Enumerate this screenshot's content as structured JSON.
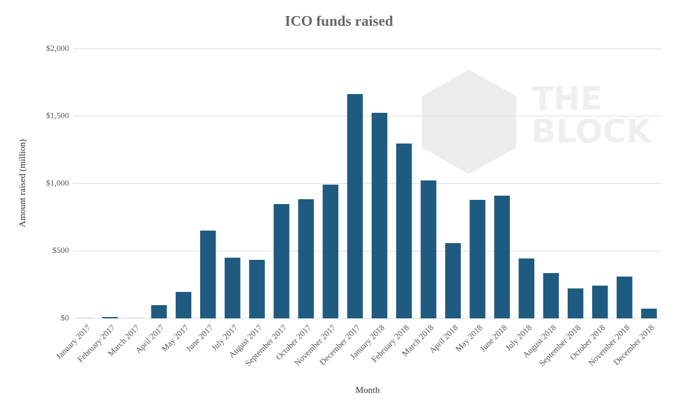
{
  "chart_data": {
    "type": "bar",
    "title": "ICO funds raised",
    "x_label": "Month",
    "y_label": "Amount raised (million)",
    "watermark": [
      "THE",
      "BLOCK"
    ],
    "categories": [
      "January 2017",
      "February 2017",
      "March 2017",
      "April 2017",
      "May 2017",
      "June 2017",
      "July 2017",
      "August 2017",
      "September 2017",
      "October 2017",
      "November 2017",
      "December 2017",
      "January 2018",
      "February 2018",
      "March 2018",
      "April 2018",
      "May 2018",
      "June 2018",
      "July 2018",
      "August 2018",
      "September 2018",
      "October 2018",
      "November 2018",
      "December 2018"
    ],
    "values": [
      1,
      10,
      1,
      98,
      196,
      651,
      450,
      434,
      848,
      884,
      992,
      1664,
      1525,
      1297,
      1023,
      558,
      879,
      910,
      444,
      336,
      222,
      243,
      310,
      72
    ],
    "color": "#1f5b80",
    "ylim": [
      0,
      2000
    ],
    "yticks": [
      {
        "value": 0,
        "label": "$0"
      },
      {
        "value": 500,
        "label": "$500"
      },
      {
        "value": 1000,
        "label": "$1,000"
      },
      {
        "value": 1500,
        "label": "$1,500"
      },
      {
        "value": 2000,
        "label": "$2,000"
      }
    ],
    "grid": true
  }
}
